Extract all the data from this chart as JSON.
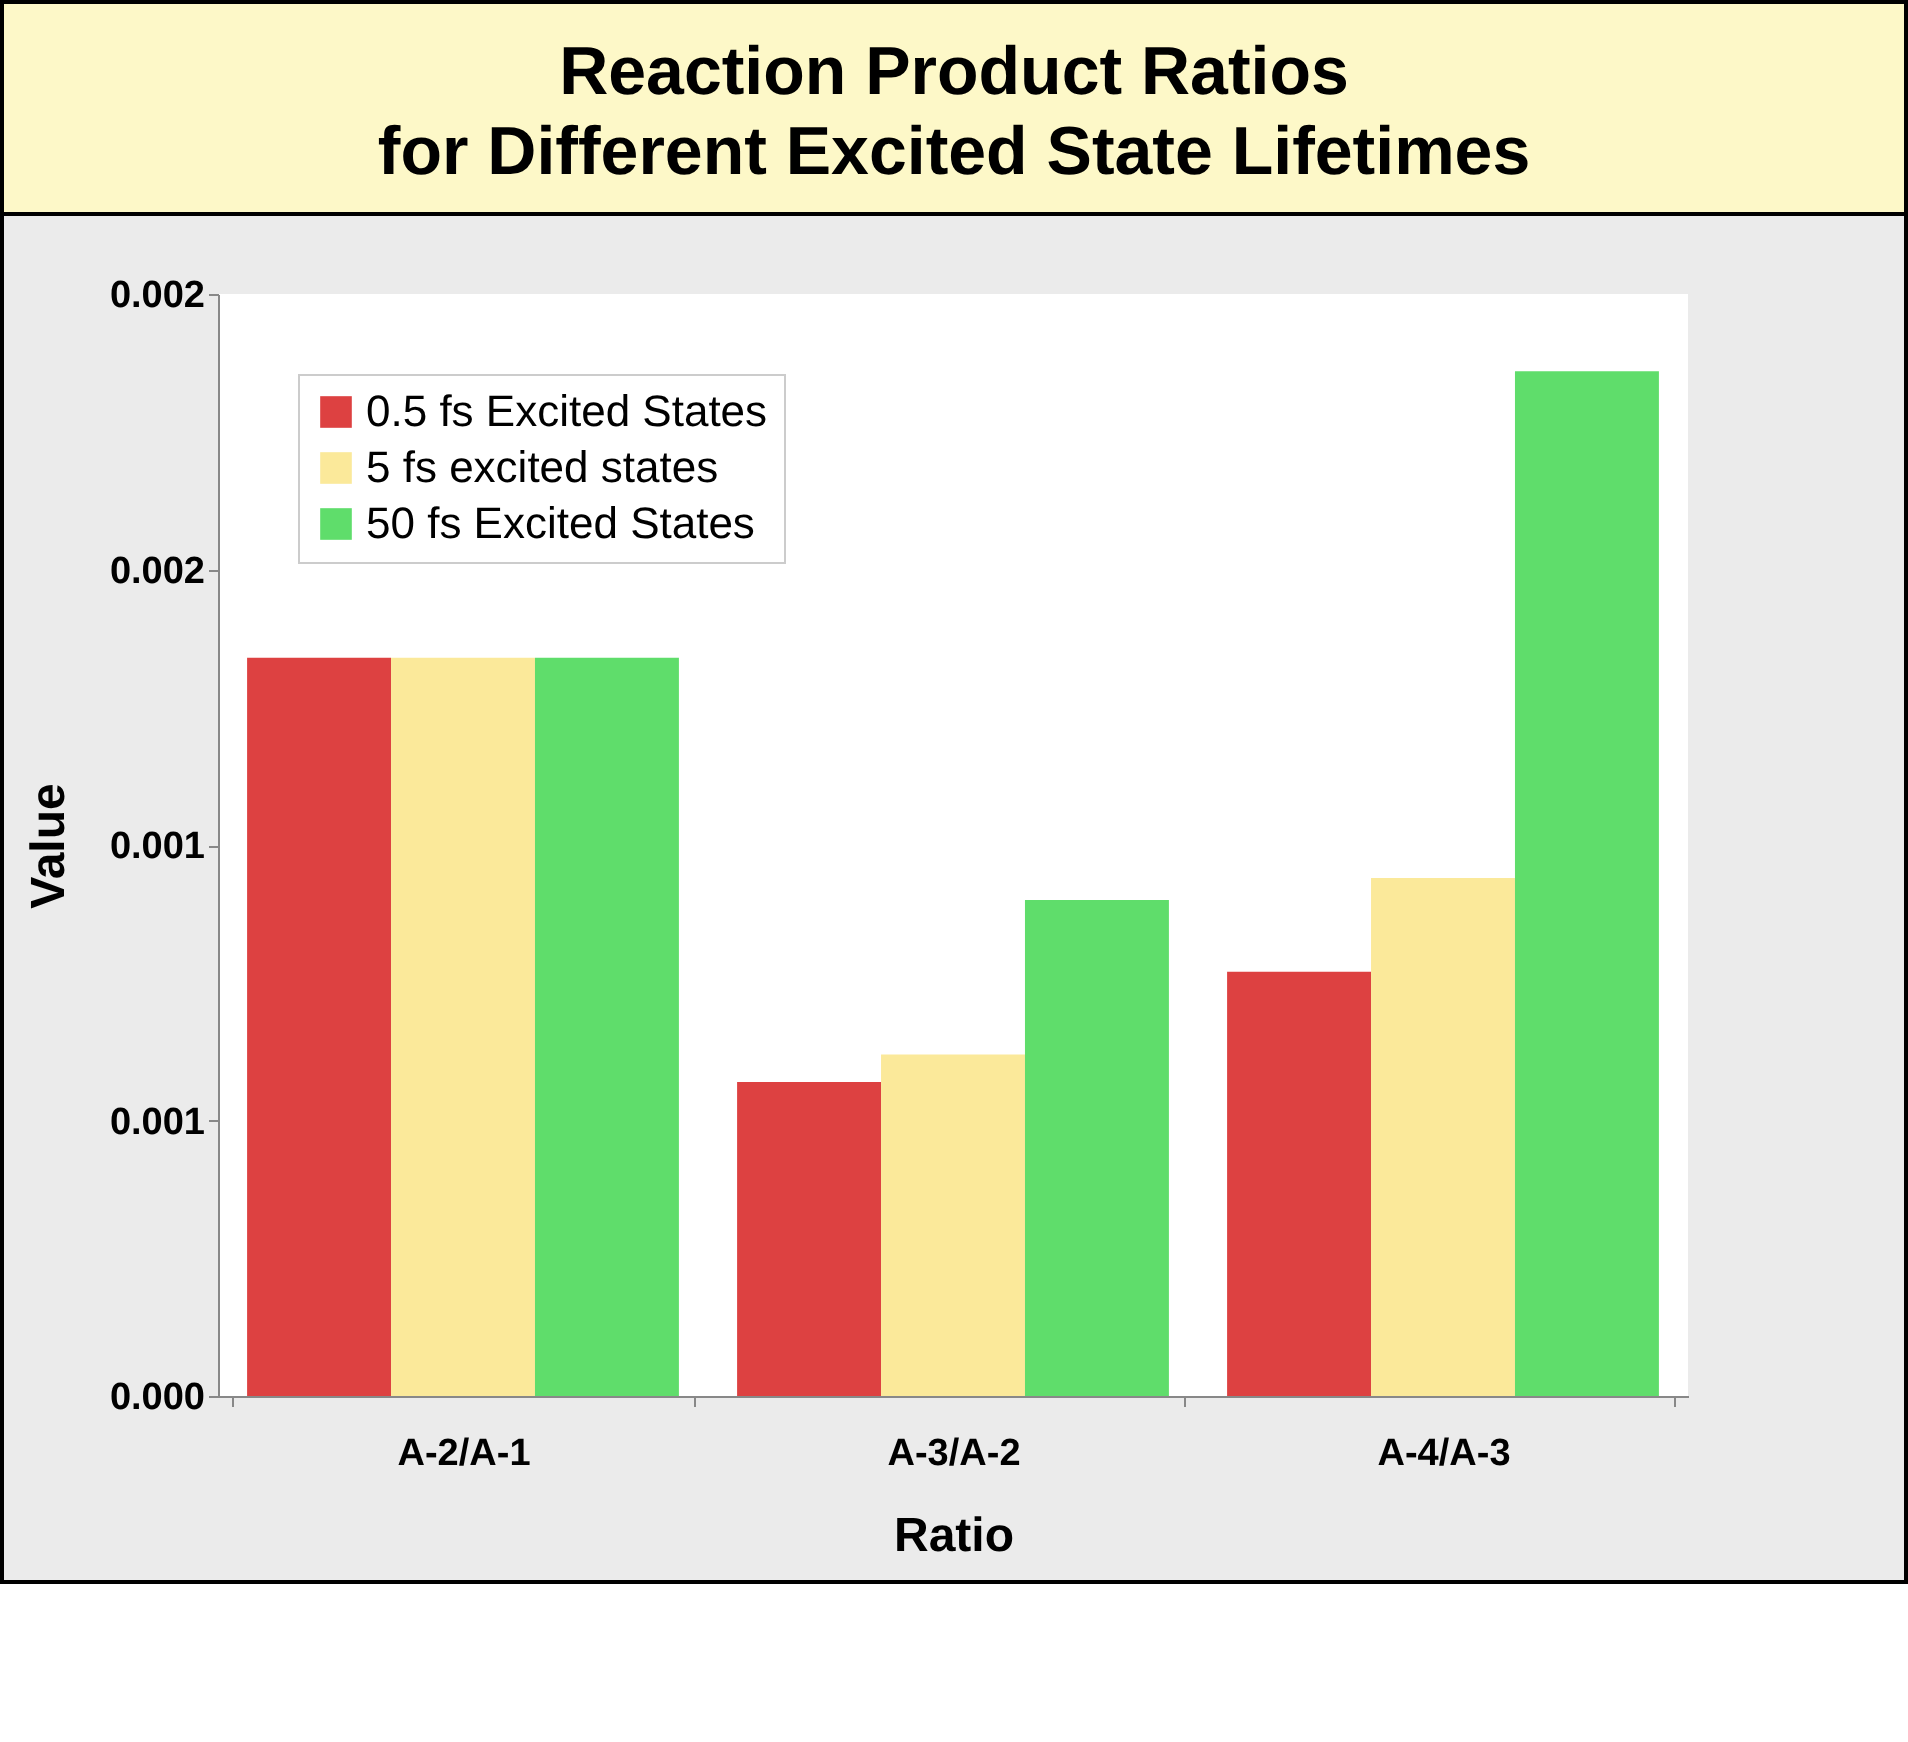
{
  "chart_data": {
    "type": "bar",
    "title": "Reaction Product Ratios\nfor Different Excited State Lifetimes",
    "xlabel": "Ratio",
    "ylabel": "Value",
    "categories": [
      "A-2/A-1",
      "A-3/A-2",
      "A-4/A-3"
    ],
    "series": [
      {
        "name": "0.5 fs Excited States",
        "color": "#dd4141",
        "values": [
          0.00134,
          0.00057,
          0.00077
        ]
      },
      {
        "name": "5 fs excited states",
        "color": "#fbe99a",
        "values": [
          0.00134,
          0.00062,
          0.00094
        ]
      },
      {
        "name": "50 fs Excited States",
        "color": "#5fdd6b",
        "values": [
          0.00134,
          0.0009,
          0.00186
        ]
      }
    ],
    "ylim": [
      0,
      0.002
    ],
    "yticks": [
      {
        "value": 0,
        "label": "0.000"
      },
      {
        "value": 0.0005,
        "label": "0.001"
      },
      {
        "value": 0.001,
        "label": "0.001"
      },
      {
        "value": 0.0015,
        "label": "0.002"
      },
      {
        "value": 0.002,
        "label": "0.002"
      }
    ],
    "grid": false,
    "legend": "top left"
  }
}
